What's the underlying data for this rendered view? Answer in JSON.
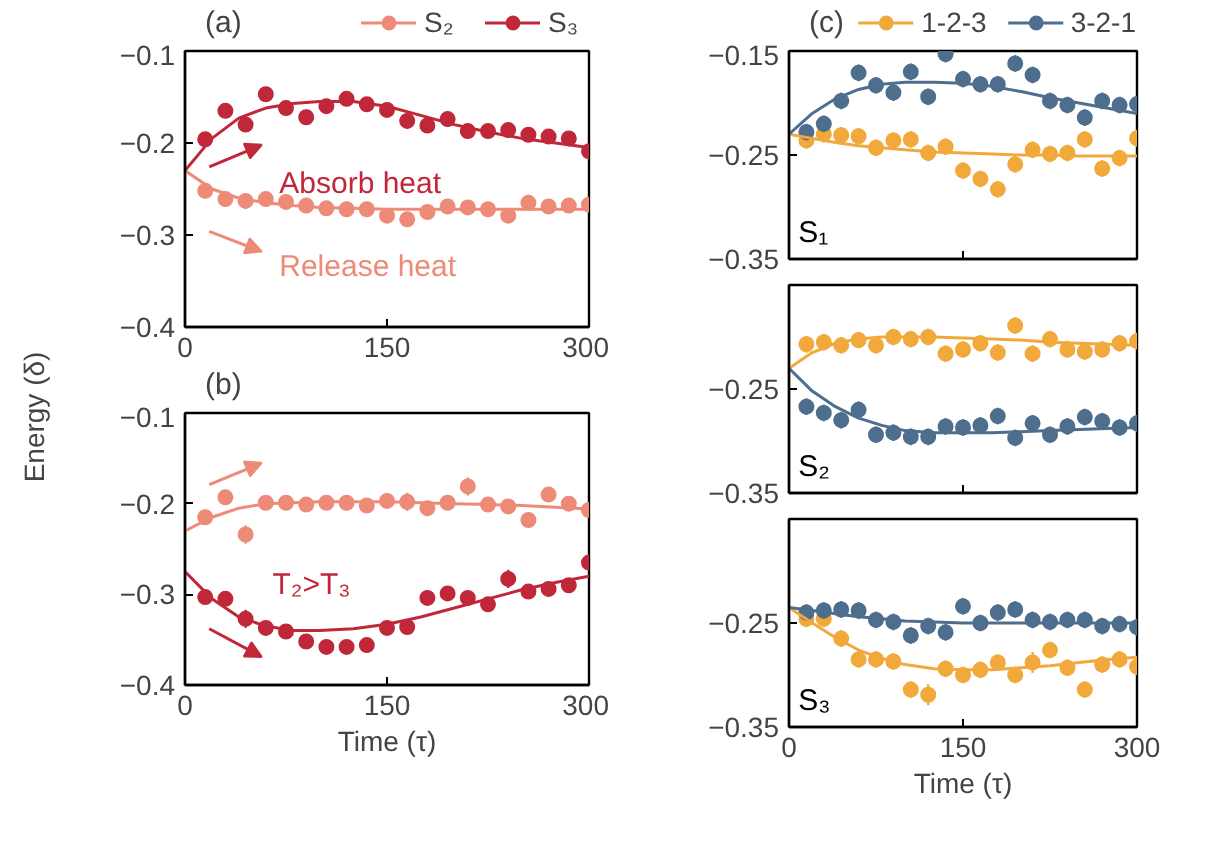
{
  "chart_data": [
    {
      "type": "scatter",
      "title": "(a)",
      "ylabel": "Energy (δ)",
      "legend": "top",
      "marker": "circle",
      "x": [
        15,
        30,
        45,
        60,
        75,
        90,
        105,
        120,
        135,
        150,
        165,
        180,
        195,
        210,
        225,
        240,
        255,
        270,
        285,
        300
      ],
      "xlim": [
        0,
        300
      ],
      "xticks": [
        0,
        150,
        300
      ],
      "ylim": [
        -0.4,
        -0.1
      ],
      "yticks": [
        -0.4,
        -0.3,
        -0.2,
        -0.1
      ],
      "annotations": [
        "Absorb heat",
        "Release heat"
      ],
      "series": [
        {
          "name": "S₂",
          "type": "scatter",
          "color": "#ee8a78",
          "values": [
            -0.252,
            -0.261,
            -0.263,
            -0.261,
            -0.264,
            -0.268,
            -0.271,
            -0.272,
            -0.272,
            -0.279,
            -0.283,
            -0.275,
            -0.269,
            -0.27,
            -0.272,
            -0.279,
            -0.265,
            -0.269,
            -0.268,
            -0.267
          ],
          "errors": [
            0.008,
            0.008,
            0.008,
            0.008,
            0.008,
            0.008,
            0.008,
            0.008,
            0.008,
            0.008,
            0.008,
            0.008,
            0.008,
            0.008,
            0.008,
            0.008,
            0.008,
            0.008,
            0.008,
            0.008
          ]
        },
        {
          "name": "S₃",
          "type": "scatter",
          "color": "#c0283a",
          "values": [
            -0.196,
            -0.165,
            -0.18,
            -0.147,
            -0.162,
            -0.172,
            -0.16,
            -0.152,
            -0.158,
            -0.164,
            -0.176,
            -0.181,
            -0.174,
            -0.187,
            -0.187,
            -0.186,
            -0.191,
            -0.193,
            -0.195,
            -0.209
          ],
          "errors": [
            0.008,
            0.008,
            0.008,
            0.008,
            0.008,
            0.008,
            0.008,
            0.008,
            0.008,
            0.008,
            0.008,
            0.008,
            0.008,
            0.008,
            0.008,
            0.008,
            0.008,
            0.008,
            0.008,
            0.008
          ]
        },
        {
          "type": "line",
          "marker": "none",
          "color": "#ee8a78",
          "x": [
            0,
            20,
            40,
            60,
            80,
            100,
            125,
            150,
            175,
            200,
            225,
            250,
            275,
            300
          ],
          "values": [
            -0.23,
            -0.25,
            -0.26,
            -0.265,
            -0.268,
            -0.27,
            -0.271,
            -0.272,
            -0.272,
            -0.272,
            -0.272,
            -0.272,
            -0.272,
            -0.272
          ]
        },
        {
          "type": "line",
          "marker": "none",
          "color": "#c0283a",
          "x": [
            0,
            20,
            40,
            60,
            80,
            100,
            125,
            150,
            175,
            200,
            225,
            250,
            275,
            300
          ],
          "values": [
            -0.23,
            -0.195,
            -0.173,
            -0.162,
            -0.157,
            -0.155,
            -0.155,
            -0.16,
            -0.17,
            -0.18,
            -0.188,
            -0.195,
            -0.2,
            -0.205
          ]
        }
      ]
    },
    {
      "type": "scatter",
      "title": "(b)",
      "xlabel": "Time (τ)",
      "marker": "circle",
      "x": [
        15,
        30,
        45,
        60,
        75,
        90,
        105,
        120,
        135,
        150,
        165,
        180,
        195,
        210,
        225,
        240,
        255,
        270,
        285,
        300
      ],
      "xlim": [
        0,
        300
      ],
      "xticks": [
        0,
        150,
        300
      ],
      "ylim": [
        -0.4,
        -0.1
      ],
      "yticks": [
        -0.4,
        -0.3,
        -0.2,
        -0.1
      ],
      "annotations": [
        "T₂>T₃"
      ],
      "series": [
        {
          "type": "scatter",
          "color": "#ee8a78",
          "values": [
            -0.215,
            -0.193,
            -0.234,
            -0.199,
            -0.199,
            -0.201,
            -0.199,
            -0.199,
            -0.202,
            -0.197,
            -0.198,
            -0.205,
            -0.199,
            -0.181,
            -0.201,
            -0.203,
            -0.218,
            -0.19,
            -0.2,
            -0.207
          ],
          "errors": [
            0.008,
            0.008,
            0.01,
            0.008,
            0.008,
            0.008,
            0.008,
            0.008,
            0.008,
            0.008,
            0.01,
            0.008,
            0.008,
            0.01,
            0.008,
            0.008,
            0.008,
            0.008,
            0.008,
            0.008
          ]
        },
        {
          "type": "scatter",
          "color": "#c0283a",
          "values": [
            -0.303,
            -0.305,
            -0.327,
            -0.337,
            -0.341,
            -0.352,
            -0.358,
            -0.358,
            -0.356,
            -0.337,
            -0.336,
            -0.304,
            -0.299,
            -0.304,
            -0.311,
            -0.283,
            -0.297,
            -0.294,
            -0.29,
            -0.265
          ],
          "errors": [
            0.008,
            0.008,
            0.01,
            0.008,
            0.008,
            0.008,
            0.008,
            0.008,
            0.008,
            0.008,
            0.008,
            0.008,
            0.008,
            0.008,
            0.008,
            0.01,
            0.008,
            0.008,
            0.008,
            0.008
          ]
        },
        {
          "type": "line",
          "marker": "none",
          "color": "#ee8a78",
          "x": [
            0,
            20,
            40,
            60,
            80,
            100,
            125,
            150,
            175,
            200,
            225,
            250,
            275,
            300
          ],
          "values": [
            -0.23,
            -0.215,
            -0.205,
            -0.2,
            -0.199,
            -0.198,
            -0.198,
            -0.198,
            -0.199,
            -0.2,
            -0.201,
            -0.202,
            -0.204,
            -0.206
          ]
        },
        {
          "type": "line",
          "marker": "none",
          "color": "#c0283a",
          "x": [
            0,
            20,
            40,
            60,
            80,
            100,
            125,
            150,
            175,
            200,
            225,
            250,
            275,
            300
          ],
          "values": [
            -0.275,
            -0.305,
            -0.325,
            -0.335,
            -0.34,
            -0.34,
            -0.338,
            -0.333,
            -0.325,
            -0.315,
            -0.305,
            -0.295,
            -0.287,
            -0.28
          ]
        }
      ]
    },
    {
      "type": "scatter",
      "title": "(c)",
      "legend": "top",
      "marker": "circle",
      "tick_labels": "y",
      "x": [
        15,
        30,
        45,
        60,
        75,
        90,
        105,
        120,
        135,
        150,
        165,
        180,
        195,
        210,
        225,
        240,
        255,
        270,
        285,
        300
      ],
      "xlim": [
        0,
        300
      ],
      "xticks": [
        0,
        150,
        300
      ],
      "ylim": [
        -0.35,
        -0.15
      ],
      "yticks": [
        -0.35,
        -0.25,
        -0.15
      ],
      "annotations": [
        "S₁"
      ],
      "series": [
        {
          "name": "1-2-3",
          "type": "scatter",
          "color": "#f2a93b",
          "values": [
            -0.236,
            -0.23,
            -0.231,
            -0.232,
            -0.243,
            -0.236,
            -0.235,
            -0.248,
            -0.242,
            -0.265,
            -0.273,
            -0.283,
            -0.259,
            -0.245,
            -0.249,
            -0.248,
            -0.235,
            -0.263,
            -0.253,
            -0.234
          ],
          "errors": [
            0.008,
            0.008,
            0.008,
            0.008,
            0.008,
            0.008,
            0.008,
            0.008,
            0.008,
            0.008,
            0.008,
            0.008,
            0.008,
            0.008,
            0.008,
            0.008,
            0.008,
            0.008,
            0.008,
            0.008
          ]
        },
        {
          "name": "3-2-1",
          "type": "scatter",
          "color": "#4e6e8e",
          "values": [
            -0.228,
            -0.22,
            -0.198,
            -0.171,
            -0.183,
            -0.19,
            -0.17,
            -0.194,
            -0.153,
            -0.177,
            -0.182,
            -0.182,
            -0.162,
            -0.173,
            -0.198,
            -0.202,
            -0.214,
            -0.198,
            -0.202,
            -0.201
          ],
          "errors": [
            0.008,
            0.008,
            0.008,
            0.008,
            0.008,
            0.008,
            0.008,
            0.008,
            0.008,
            0.008,
            0.008,
            0.008,
            0.008,
            0.008,
            0.008,
            0.008,
            0.008,
            0.008,
            0.008,
            0.008
          ]
        },
        {
          "type": "line",
          "marker": "none",
          "color": "#f2a93b",
          "x": [
            0,
            20,
            40,
            60,
            80,
            100,
            125,
            150,
            175,
            200,
            225,
            250,
            275,
            300
          ],
          "values": [
            -0.23,
            -0.234,
            -0.238,
            -0.241,
            -0.243,
            -0.245,
            -0.247,
            -0.248,
            -0.249,
            -0.25,
            -0.25,
            -0.251,
            -0.251,
            -0.251
          ]
        },
        {
          "type": "line",
          "marker": "none",
          "color": "#4e6e8e",
          "x": [
            0,
            20,
            40,
            60,
            80,
            100,
            125,
            150,
            175,
            200,
            225,
            250,
            275,
            300
          ],
          "values": [
            -0.23,
            -0.21,
            -0.196,
            -0.187,
            -0.182,
            -0.18,
            -0.18,
            -0.181,
            -0.184,
            -0.189,
            -0.195,
            -0.2,
            -0.205,
            -0.21
          ]
        }
      ]
    },
    {
      "type": "scatter",
      "marker": "circle",
      "tick_labels": "y",
      "x": [
        15,
        30,
        45,
        60,
        75,
        90,
        105,
        120,
        135,
        150,
        165,
        180,
        195,
        210,
        225,
        240,
        255,
        270,
        285,
        300
      ],
      "xlim": [
        0,
        300
      ],
      "xticks": [
        0,
        150,
        300
      ],
      "ylim": [
        -0.35,
        -0.15
      ],
      "yticks": [
        -0.35,
        -0.25,
        {
          "value": -0.15,
          "label": null
        }
      ],
      "annotations": [
        "S₂"
      ],
      "series": [
        {
          "type": "scatter",
          "color": "#f2a93b",
          "values": [
            -0.207,
            -0.205,
            -0.208,
            -0.203,
            -0.208,
            -0.2,
            -0.202,
            -0.2,
            -0.216,
            -0.212,
            -0.206,
            -0.215,
            -0.189,
            -0.216,
            -0.202,
            -0.212,
            -0.214,
            -0.212,
            -0.206,
            -0.204
          ],
          "errors": [
            0.008,
            0.008,
            0.008,
            0.008,
            0.008,
            0.008,
            0.008,
            0.008,
            0.008,
            0.008,
            0.008,
            0.008,
            0.008,
            0.008,
            0.008,
            0.008,
            0.008,
            0.008,
            0.008,
            0.008
          ]
        },
        {
          "type": "scatter",
          "color": "#4e6e8e",
          "values": [
            -0.267,
            -0.273,
            -0.28,
            -0.27,
            -0.294,
            -0.292,
            -0.296,
            -0.296,
            -0.286,
            -0.287,
            -0.285,
            -0.276,
            -0.297,
            -0.283,
            -0.294,
            -0.286,
            -0.277,
            -0.281,
            -0.287,
            -0.283
          ],
          "errors": [
            0.008,
            0.008,
            0.008,
            0.008,
            0.008,
            0.008,
            0.008,
            0.008,
            0.008,
            0.008,
            0.008,
            0.008,
            0.008,
            0.008,
            0.008,
            0.008,
            0.008,
            0.008,
            0.008,
            0.008
          ]
        },
        {
          "type": "line",
          "marker": "none",
          "color": "#f2a93b",
          "x": [
            0,
            20,
            40,
            60,
            80,
            100,
            125,
            150,
            175,
            200,
            225,
            250,
            275,
            300
          ],
          "values": [
            -0.23,
            -0.215,
            -0.206,
            -0.202,
            -0.2,
            -0.2,
            -0.2,
            -0.201,
            -0.202,
            -0.203,
            -0.205,
            -0.206,
            -0.207,
            -0.208
          ]
        },
        {
          "type": "line",
          "marker": "none",
          "color": "#4e6e8e",
          "x": [
            0,
            20,
            40,
            60,
            80,
            100,
            125,
            150,
            175,
            200,
            225,
            250,
            275,
            300
          ],
          "values": [
            -0.23,
            -0.252,
            -0.267,
            -0.278,
            -0.285,
            -0.29,
            -0.292,
            -0.292,
            -0.292,
            -0.291,
            -0.29,
            -0.289,
            -0.288,
            -0.287
          ]
        }
      ]
    },
    {
      "type": "scatter",
      "xlabel": "Time (τ)",
      "marker": "circle",
      "x": [
        15,
        30,
        45,
        60,
        75,
        90,
        105,
        120,
        135,
        150,
        165,
        180,
        195,
        210,
        225,
        240,
        255,
        270,
        285,
        300
      ],
      "xlim": [
        0,
        300
      ],
      "xticks": [
        0,
        150,
        300
      ],
      "ylim": [
        -0.35,
        -0.15
      ],
      "yticks": [
        -0.35,
        -0.25,
        {
          "value": -0.15,
          "label": null
        }
      ],
      "annotations": [
        "S₃"
      ],
      "series": [
        {
          "type": "scatter",
          "color": "#f2a93b",
          "values": [
            -0.246,
            -0.246,
            -0.265,
            -0.285,
            -0.285,
            -0.287,
            -0.314,
            -0.319,
            -0.294,
            -0.3,
            -0.295,
            -0.288,
            -0.3,
            -0.288,
            -0.276,
            -0.293,
            -0.314,
            -0.29,
            -0.285,
            -0.292
          ],
          "errors": [
            0.008,
            0.008,
            0.008,
            0.008,
            0.008,
            0.008,
            0.008,
            0.01,
            0.008,
            0.008,
            0.008,
            0.008,
            0.008,
            0.01,
            0.008,
            0.008,
            0.008,
            0.008,
            0.008,
            0.008
          ]
        },
        {
          "type": "scatter",
          "color": "#4e6e8e",
          "values": [
            -0.24,
            -0.238,
            -0.237,
            -0.238,
            -0.247,
            -0.249,
            -0.262,
            -0.253,
            -0.259,
            -0.234,
            -0.25,
            -0.24,
            -0.237,
            -0.247,
            -0.249,
            -0.247,
            -0.247,
            -0.253,
            -0.251,
            -0.254
          ],
          "errors": [
            0.008,
            0.008,
            0.008,
            0.008,
            0.008,
            0.008,
            0.008,
            0.008,
            0.008,
            0.008,
            0.008,
            0.008,
            0.008,
            0.008,
            0.008,
            0.008,
            0.008,
            0.008,
            0.008,
            0.008
          ]
        },
        {
          "type": "line",
          "marker": "none",
          "color": "#f2a93b",
          "x": [
            0,
            20,
            40,
            60,
            80,
            100,
            125,
            150,
            175,
            200,
            225,
            250,
            275,
            300
          ],
          "values": [
            -0.235,
            -0.25,
            -0.264,
            -0.276,
            -0.284,
            -0.29,
            -0.294,
            -0.295,
            -0.295,
            -0.293,
            -0.291,
            -0.288,
            -0.285,
            -0.283
          ]
        },
        {
          "type": "line",
          "marker": "none",
          "color": "#4e6e8e",
          "x": [
            0,
            20,
            40,
            60,
            80,
            100,
            125,
            150,
            175,
            200,
            225,
            250,
            275,
            300
          ],
          "values": [
            -0.235,
            -0.238,
            -0.241,
            -0.244,
            -0.246,
            -0.248,
            -0.249,
            -0.25,
            -0.25,
            -0.25,
            -0.25,
            -0.25,
            -0.25,
            -0.25
          ]
        }
      ]
    }
  ]
}
